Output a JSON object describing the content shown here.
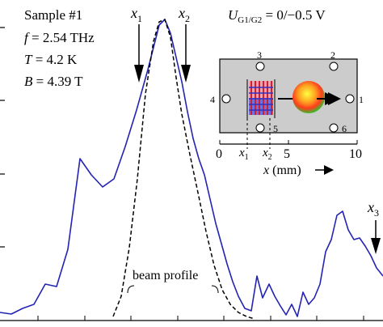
{
  "chart_data": {
    "type": "line",
    "title": "",
    "xlabel": "",
    "ylabel": "",
    "xlim": [
      0,
      474
    ],
    "ylim": [
      0,
      404
    ],
    "series": [
      {
        "name": "",
        "color": "#2323b4",
        "style": "solid",
        "x": [
          0,
          14,
          28,
          42,
          56,
          70,
          84,
          99,
          113,
          127,
          141,
          155,
          169,
          183,
          197,
          204,
          211,
          218,
          225,
          232,
          239,
          246,
          253,
          260,
          267,
          274,
          281,
          288,
          295,
          303,
          311,
          318,
          325,
          333,
          340,
          347,
          354,
          361,
          368,
          375,
          382,
          389,
          396,
          403,
          410,
          417,
          424,
          431,
          438,
          445,
          452,
          459,
          466,
          474
        ],
        "y": [
          10,
          8,
          15,
          20,
          45,
          42,
          88,
          200,
          180,
          165,
          175,
          215,
          260,
          310,
          365,
          372,
          355,
          325,
          295,
          258,
          225,
          200,
          180,
          150,
          120,
          95,
          70,
          48,
          30,
          15,
          12,
          55,
          28,
          45,
          30,
          18,
          7,
          20,
          5,
          35,
          20,
          28,
          45,
          85,
          100,
          130,
          135,
          112,
          100,
          102,
          92,
          80,
          65,
          55
        ]
      },
      {
        "name": "beam profile",
        "color": "#000000",
        "style": "dashed",
        "x": [
          140,
          150,
          160,
          170,
          180,
          190,
          197,
          204,
          211,
          218,
          225,
          235,
          245,
          255,
          265,
          275,
          285,
          295,
          305,
          315
        ],
        "y": [
          5,
          30,
          90,
          175,
          280,
          345,
          369,
          372,
          350,
          300,
          255,
          205,
          158,
          110,
          68,
          38,
          20,
          10,
          5,
          2
        ]
      }
    ],
    "annotations": {
      "sample_info": [
        "Sample #1",
        "f = 2.54 THz",
        "T = 4.2 K",
        "B = 4.39 T"
      ],
      "gate_voltage": "U_G1/G2 = 0/−0.5 V",
      "arrows": [
        {
          "label": "x1",
          "x": 172
        },
        {
          "label": "x2",
          "x": 230
        },
        {
          "label": "x3",
          "x": 465
        }
      ],
      "beam_profile_label": "beam profile"
    },
    "inset": {
      "contacts": [
        "1",
        "2",
        "3",
        "4",
        "5",
        "6"
      ],
      "axis": {
        "label": "x (mm)",
        "ticks": [
          0,
          5,
          10
        ],
        "markers": [
          "x1",
          "x2"
        ]
      }
    }
  },
  "text": {
    "sample": "Sample #1",
    "f_sym": "f",
    "f_val": " = 2.54 THz",
    "T_sym": "T",
    "T_val": " = 4.2 K",
    "B_sym": "B",
    "B_val": " = 4.39 T",
    "U_sym": "U",
    "U_sub": "G1/G2",
    "U_val": " = 0/−0.5 V",
    "x_sym": "x",
    "sub1": "1",
    "sub2": "2",
    "sub3": "3",
    "beam_profile": "beam profile",
    "c1": "1",
    "c2": "2",
    "c3": "3",
    "c4": "4",
    "c5": "5",
    "c6": "6",
    "t0": "0",
    "t5": "5",
    "t10": "10",
    "inset_axis_unit": " (mm)"
  },
  "colors": {
    "signal": "#2323b4",
    "inset_plate": "#cccccc"
  }
}
